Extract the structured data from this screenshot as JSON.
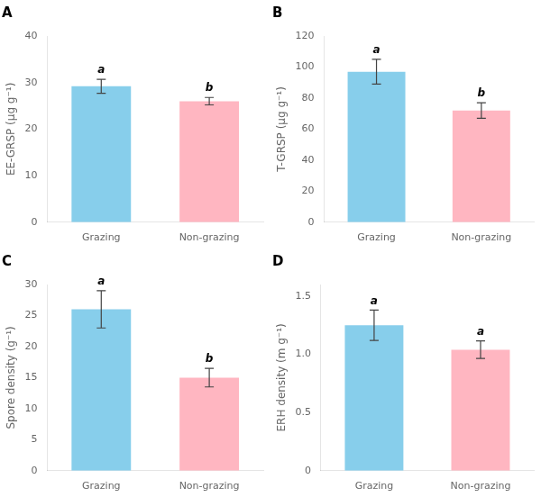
{
  "chart_data": [
    {
      "type": "bar",
      "title": "A",
      "ylabel": "EE-GRSP (μg g⁻¹)",
      "categories": [
        "Grazing",
        "Non-grazing"
      ],
      "values": [
        29.2,
        26.0
      ],
      "errors": [
        1.5,
        0.8
      ],
      "annotations": [
        "a",
        "b"
      ],
      "colors": [
        "#87CEEB",
        "#FFB6C1"
      ],
      "ylim": [
        0,
        40
      ],
      "yticks": [
        0,
        10,
        20,
        30,
        40
      ],
      "grid": false
    },
    {
      "type": "bar",
      "title": "B",
      "ylabel": "T-GRSP (μg g⁻¹)",
      "categories": [
        "Grazing",
        "Non-grazing"
      ],
      "values": [
        97.0,
        72.0
      ],
      "errors": [
        8.0,
        5.0
      ],
      "annotations": [
        "a",
        "b"
      ],
      "colors": [
        "#87CEEB",
        "#FFB6C1"
      ],
      "ylim": [
        0,
        120
      ],
      "yticks": [
        0,
        20,
        40,
        60,
        80,
        100,
        120
      ],
      "grid": false
    },
    {
      "type": "bar",
      "title": "C",
      "ylabel": "Spore density (g⁻¹)",
      "categories": [
        "Grazing",
        "Non-grazing"
      ],
      "values": [
        26.0,
        15.0
      ],
      "errors": [
        3.0,
        1.5
      ],
      "annotations": [
        "a",
        "b"
      ],
      "colors": [
        "#87CEEB",
        "#FFB6C1"
      ],
      "ylim": [
        0,
        30
      ],
      "yticks": [
        0,
        5,
        10,
        15,
        20,
        25,
        30
      ],
      "grid": false
    },
    {
      "type": "bar",
      "title": "D",
      "ylabel": "ERH density (m g⁻¹)",
      "categories": [
        "Grazing",
        "Non-grazing"
      ],
      "values": [
        1.25,
        1.04
      ],
      "errors": [
        0.13,
        0.075
      ],
      "annotations": [
        "a",
        "a"
      ],
      "colors": [
        "#87CEEB",
        "#FFB6C1"
      ],
      "ylim": [
        0,
        1.6
      ],
      "yticks": [
        0,
        0.5,
        {
          "value": 1.0,
          "label": "1.0"
        },
        1.5
      ],
      "grid": false
    }
  ]
}
